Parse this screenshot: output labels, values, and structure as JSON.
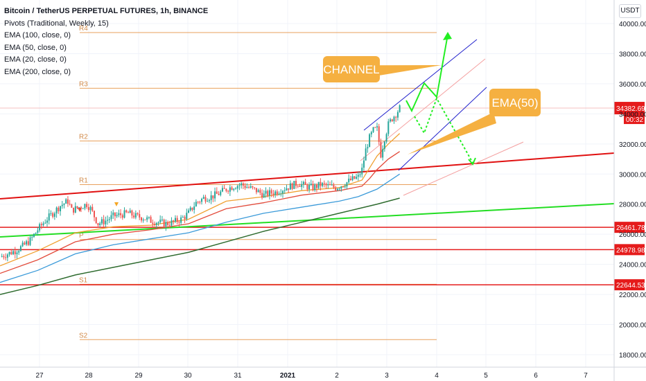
{
  "chart_title": "Bitcoin / TetherUS PERPETUAL FUTURES, 1h, BINANCE",
  "indicators": [
    "Pivots (Traditional, Weekly, 15)",
    "EMA (100, close, 0)",
    "EMA (50, close, 0)",
    "EMA (20, close, 0)",
    "EMA (200, close, 0)"
  ],
  "currency_label": "USDT",
  "colors": {
    "candle_up": "#26a69a",
    "candle_down": "#ef5350",
    "pivot_line": "#e8a05c",
    "pivot_label": "#d08a4a",
    "ema20": "#f0a030",
    "ema50": "#e24a3a",
    "ema100": "#3a9ad9",
    "ema200": "#2e6b2e",
    "trendline_red": "#e01010",
    "trendline_green": "#22dd22",
    "channel_blue": "#2020cc",
    "channel_pink": "#f4a0a0",
    "arrow_green": "#22ee22",
    "callout_fill": "#f5b041",
    "price_badge": "#e51b1b"
  },
  "chart_data": {
    "type": "candlestick",
    "x_tick_labels": [
      "27",
      "28",
      "29",
      "30",
      "31",
      "2021",
      "2",
      "3",
      "4",
      "5",
      "6",
      "7"
    ],
    "x_range": [
      "Dec 26",
      "Jan 8"
    ],
    "y_tick_labels": [
      "18000.00",
      "20000.00",
      "22000.00",
      "24000.00",
      "26000.00",
      "28000.00",
      "30000.00",
      "32000.00",
      "34000.00",
      "36000.00",
      "38000.00",
      "40000.00"
    ],
    "y_range": [
      17200,
      41000
    ],
    "current_price": "34382.69",
    "countdown": "00:32",
    "price_lines": [
      "26461.78",
      "24978.98",
      "22644.53"
    ],
    "pivot_levels": [
      {
        "label": "R4",
        "value": 39400
      },
      {
        "label": "R3",
        "value": 35700
      },
      {
        "label": "R2",
        "value": 32200
      },
      {
        "label": "R1",
        "value": 29300
      },
      {
        "label": "P",
        "value": 25650
      },
      {
        "label": "S1",
        "value": 22680
      },
      {
        "label": "S2",
        "value": 19000
      }
    ],
    "annotations": [
      {
        "text": "CHANNEL",
        "type": "callout"
      },
      {
        "text": "EMA(50)",
        "type": "callout"
      }
    ],
    "price_path_close": [
      [
        0,
        24500
      ],
      [
        4,
        24700
      ],
      [
        8,
        24900
      ],
      [
        12,
        25200
      ],
      [
        16,
        25600
      ],
      [
        20,
        26300
      ],
      [
        24,
        26900
      ],
      [
        28,
        27400
      ],
      [
        32,
        27900
      ],
      [
        36,
        28200
      ],
      [
        38,
        27600
      ],
      [
        42,
        27800
      ],
      [
        46,
        28000
      ],
      [
        48,
        27700
      ],
      [
        50,
        27200
      ],
      [
        52,
        26700
      ],
      [
        56,
        26900
      ],
      [
        60,
        27200
      ],
      [
        64,
        27300
      ],
      [
        68,
        27400
      ],
      [
        72,
        27200
      ],
      [
        76,
        27100
      ],
      [
        80,
        26900
      ],
      [
        84,
        26800
      ],
      [
        88,
        26700
      ],
      [
        92,
        26800
      ],
      [
        96,
        27000
      ],
      [
        100,
        27400
      ],
      [
        104,
        28100
      ],
      [
        108,
        28400
      ],
      [
        112,
        28500
      ],
      [
        116,
        28700
      ],
      [
        120,
        29000
      ],
      [
        124,
        29200
      ],
      [
        128,
        29300
      ],
      [
        132,
        29100
      ],
      [
        136,
        28900
      ],
      [
        140,
        28600
      ],
      [
        142,
        28700
      ],
      [
        146,
        28800
      ],
      [
        150,
        29000
      ],
      [
        154,
        29200
      ],
      [
        158,
        29400
      ],
      [
        162,
        29200
      ],
      [
        166,
        29100
      ],
      [
        170,
        29300
      ],
      [
        174,
        29200
      ],
      [
        178,
        29100
      ],
      [
        182,
        29300
      ],
      [
        186,
        29600
      ],
      [
        190,
        29800
      ],
      [
        192,
        30300
      ],
      [
        194,
        31600
      ],
      [
        196,
        32400
      ],
      [
        198,
        32900
      ],
      [
        200,
        33000
      ],
      [
        202,
        31300
      ],
      [
        204,
        32400
      ],
      [
        206,
        33300
      ],
      [
        208,
        33700
      ],
      [
        210,
        34000
      ],
      [
        212,
        34382.69
      ]
    ],
    "ema20": [
      [
        0,
        23900
      ],
      [
        20,
        24900
      ],
      [
        40,
        26100
      ],
      [
        60,
        26500
      ],
      [
        80,
        26600
      ],
      [
        100,
        27000
      ],
      [
        120,
        28200
      ],
      [
        140,
        28500
      ],
      [
        160,
        28900
      ],
      [
        180,
        29100
      ],
      [
        192,
        29600
      ],
      [
        196,
        30400
      ],
      [
        200,
        31200
      ],
      [
        206,
        32000
      ],
      [
        212,
        32700
      ]
    ],
    "ema50": [
      [
        0,
        23400
      ],
      [
        20,
        24300
      ],
      [
        40,
        25500
      ],
      [
        60,
        26000
      ],
      [
        80,
        26300
      ],
      [
        100,
        26700
      ],
      [
        120,
        27700
      ],
      [
        140,
        28100
      ],
      [
        160,
        28600
      ],
      [
        180,
        28900
      ],
      [
        192,
        29200
      ],
      [
        196,
        29700
      ],
      [
        200,
        30300
      ],
      [
        206,
        31000
      ],
      [
        212,
        31500
      ]
    ],
    "ema100": [
      [
        0,
        22800
      ],
      [
        20,
        23600
      ],
      [
        40,
        24700
      ],
      [
        60,
        25300
      ],
      [
        80,
        25700
      ],
      [
        100,
        26100
      ],
      [
        120,
        26800
      ],
      [
        140,
        27400
      ],
      [
        160,
        27800
      ],
      [
        180,
        28200
      ],
      [
        190,
        28500
      ],
      [
        200,
        29000
      ],
      [
        212,
        30000
      ]
    ],
    "ema200": [
      [
        0,
        22000
      ],
      [
        20,
        22600
      ],
      [
        40,
        23300
      ],
      [
        60,
        23800
      ],
      [
        80,
        24300
      ],
      [
        100,
        24800
      ],
      [
        120,
        25500
      ],
      [
        140,
        26200
      ],
      [
        160,
        26800
      ],
      [
        180,
        27400
      ],
      [
        190,
        27700
      ],
      [
        200,
        28000
      ],
      [
        212,
        28400
      ]
    ]
  }
}
